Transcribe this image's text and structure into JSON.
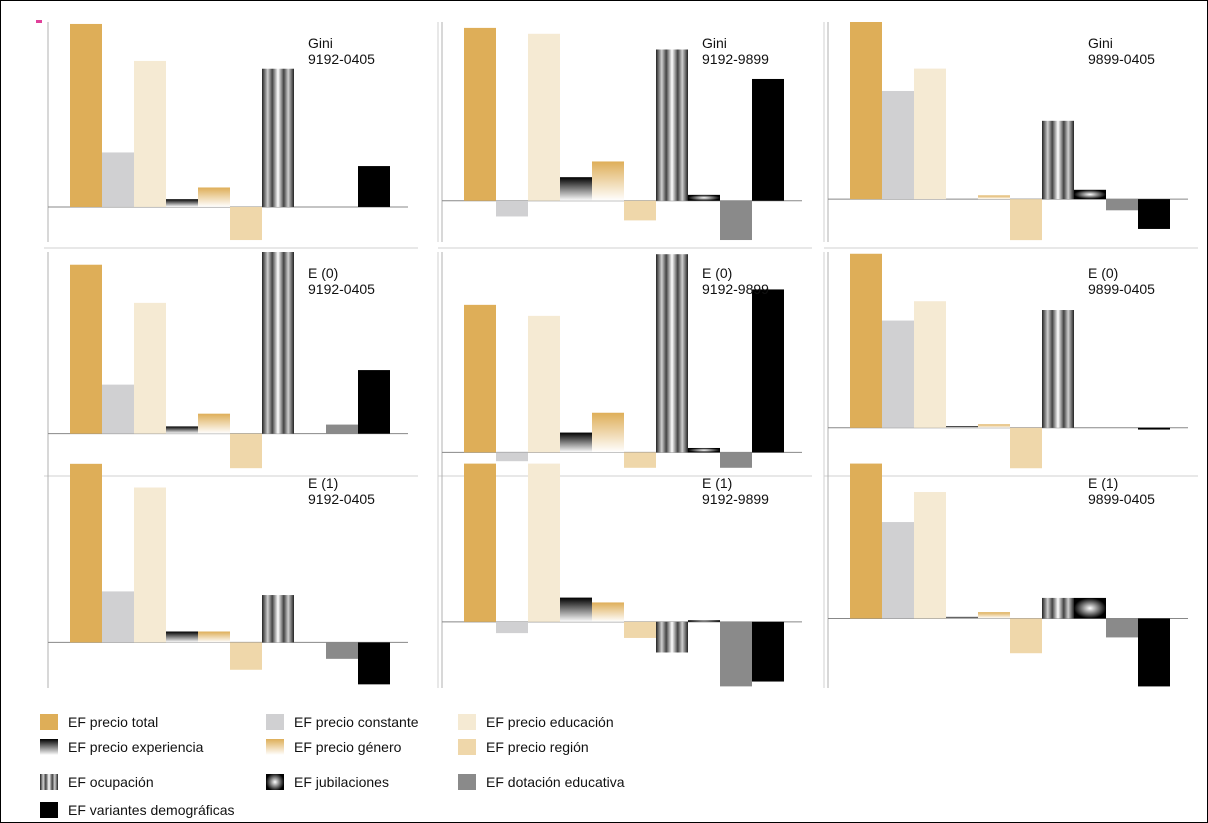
{
  "colors": {
    "precio_total": "#deae58",
    "precio_constante": "#d0d0d2",
    "precio_educacion": "#f5ead3",
    "precio_region": "#efd7aa",
    "dotacion_educativa": "#8a8a8a",
    "variantes_demograficas": "#000000"
  },
  "chart_data": [
    {
      "type": "bar",
      "label_line1": "Gini",
      "label_line2": "9192-0405",
      "categories": [
        "EF precio total",
        "EF precio constante",
        "EF precio educación",
        "EF precio experiencia",
        "EF precio género",
        "EF precio región",
        "EF ocupación",
        "EF jubilaciones",
        "EF dotación educativa",
        "EF variantes demográficas"
      ],
      "values": [
        0.94,
        0.28,
        0.75,
        0.04,
        0.1,
        -0.17,
        0.71,
        0.0,
        0.0,
        0.21
      ],
      "ylim": [
        -0.18,
        0.95
      ]
    },
    {
      "type": "bar",
      "label_line1": "Gini",
      "label_line2": "9192-9899",
      "categories": [
        "EF precio total",
        "EF precio constante",
        "EF precio educación",
        "EF precio experiencia",
        "EF precio género",
        "EF precio región",
        "EF ocupación",
        "EF jubilaciones",
        "EF dotación educativa",
        "EF variantes demográficas"
      ],
      "values": [
        0.88,
        -0.08,
        0.85,
        0.12,
        0.2,
        -0.1,
        0.77,
        0.03,
        -0.2,
        0.62
      ],
      "ylim": [
        -0.21,
        0.91
      ]
    },
    {
      "type": "bar",
      "label_line1": "Gini",
      "label_line2": "9899-0405",
      "categories": [
        "EF precio total",
        "EF precio constante",
        "EF precio educación",
        "EF precio experiencia",
        "EF precio género",
        "EF precio región",
        "EF ocupación",
        "EF jubilaciones",
        "EF dotación educativa",
        "EF variantes demográficas"
      ],
      "values": [
        0.95,
        0.58,
        0.7,
        0.0,
        0.02,
        -0.22,
        0.42,
        0.05,
        -0.06,
        -0.16
      ],
      "ylim": [
        -0.23,
        0.95
      ]
    },
    {
      "type": "bar",
      "label_line1": "E (0)",
      "label_line2": "9192-0405",
      "categories": [
        "EF precio total",
        "EF precio constante",
        "EF precio educación",
        "EF precio experiencia",
        "EF precio género",
        "EF precio región",
        "EF ocupación",
        "EF jubilaciones",
        "EF dotación educativa",
        "EF variantes demográficas"
      ],
      "values": [
        0.93,
        0.27,
        0.72,
        0.04,
        0.11,
        -0.19,
        1.0,
        0.0,
        0.05,
        0.35
      ],
      "ylim": [
        -0.2,
        1.0
      ]
    },
    {
      "type": "bar",
      "label_line1": "E (0)",
      "label_line2": "9192-9899",
      "categories": [
        "EF precio total",
        "EF precio constante",
        "EF precio educación",
        "EF precio experiencia",
        "EF precio género",
        "EF precio región",
        "EF ocupación",
        "EF jubilaciones",
        "EF dotación educativa",
        "EF variantes demográficas"
      ],
      "values": [
        0.67,
        -0.04,
        0.62,
        0.09,
        0.18,
        -0.07,
        0.9,
        0.02,
        -0.07,
        0.74
      ],
      "ylim": [
        -0.08,
        0.91
      ]
    },
    {
      "type": "bar",
      "label_line1": "E (0)",
      "label_line2": "9899-0405",
      "categories": [
        "EF precio total",
        "EF precio constante",
        "EF precio educación",
        "EF precio experiencia",
        "EF precio género",
        "EF precio región",
        "EF ocupación",
        "EF jubilaciones",
        "EF dotación educativa",
        "EF variantes demográficas"
      ],
      "values": [
        0.99,
        0.61,
        0.72,
        0.01,
        0.02,
        -0.23,
        0.67,
        0.0,
        0.0,
        -0.01
      ],
      "ylim": [
        -0.24,
        1.0
      ]
    },
    {
      "type": "bar",
      "label_line1": "E (1)",
      "label_line2": "9192-0405",
      "categories": [
        "EF precio total",
        "EF precio constante",
        "EF precio educación",
        "EF precio experiencia",
        "EF precio género",
        "EF precio región",
        "EF ocupación",
        "EF jubilaciones",
        "EF dotación educativa",
        "EF variantes demográficas"
      ],
      "values": [
        0.98,
        0.28,
        0.85,
        0.06,
        0.06,
        -0.15,
        0.26,
        0.0,
        -0.09,
        -0.23
      ],
      "ylim": [
        -0.25,
        0.99
      ]
    },
    {
      "type": "bar",
      "label_line1": "E (1)",
      "label_line2": "9192-9899",
      "categories": [
        "EF precio total",
        "EF precio constante",
        "EF precio educación",
        "EF precio experiencia",
        "EF precio género",
        "EF precio región",
        "EF ocupación",
        "EF jubilaciones",
        "EF dotación educativa",
        "EF variantes demográficas"
      ],
      "values": [
        0.98,
        -0.07,
        0.98,
        0.15,
        0.12,
        -0.1,
        -0.19,
        0.01,
        -0.4,
        -0.37
      ],
      "ylim": [
        -0.41,
        0.99
      ]
    },
    {
      "type": "bar",
      "label_line1": "E (1)",
      "label_line2": "9899-0405",
      "categories": [
        "EF precio total",
        "EF precio constante",
        "EF precio educación",
        "EF precio experiencia",
        "EF precio género",
        "EF precio región",
        "EF ocupación",
        "EF jubilaciones",
        "EF dotación educativa",
        "EF variantes demográficas"
      ],
      "values": [
        0.98,
        0.61,
        0.8,
        0.01,
        0.04,
        -0.22,
        0.13,
        0.13,
        -0.12,
        -0.43
      ],
      "ylim": [
        -0.44,
        0.99
      ]
    }
  ],
  "legend": [
    {
      "label": "EF precio total",
      "swatch": "precio_total"
    },
    {
      "label": "EF precio constante",
      "swatch": "precio_constante"
    },
    {
      "label": "EF precio educación",
      "swatch": "precio_educacion"
    },
    {
      "label": "EF precio experiencia",
      "swatch": "precio_experiencia"
    },
    {
      "label": "EF precio género",
      "swatch": "precio_genero"
    },
    {
      "label": "EF precio región",
      "swatch": "precio_region"
    },
    {
      "label": "EF ocupación",
      "swatch": "ocupacion"
    },
    {
      "label": "EF jubilaciones",
      "swatch": "jubilaciones"
    },
    {
      "label": "EF dotación educativa",
      "swatch": "dotacion_educativa"
    },
    {
      "label": "EF variantes demográficas",
      "swatch": "variantes_demograficas"
    }
  ]
}
